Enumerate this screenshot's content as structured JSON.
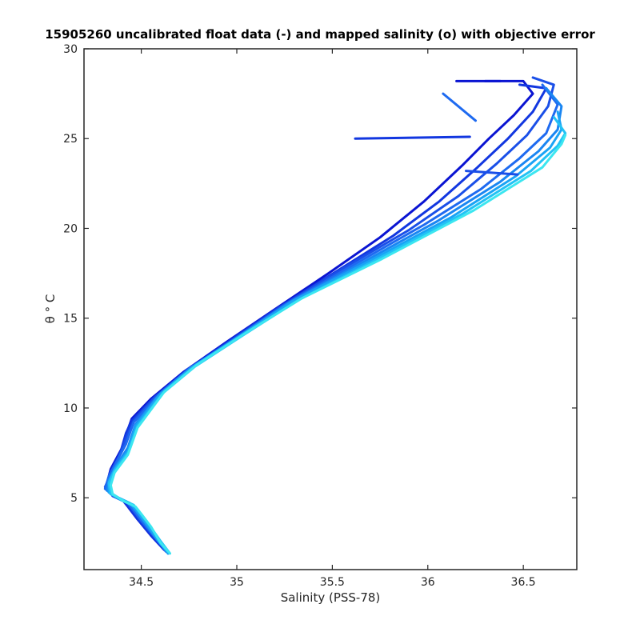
{
  "chart_data": {
    "type": "line",
    "title": "15905260 uncalibrated float data (-) and mapped salinity (o) with objective error",
    "xlabel": "Salinity (PSS-78)",
    "ylabel": "θ ° C",
    "xlim": [
      34.2,
      36.78
    ],
    "ylim": [
      1.0,
      30.0
    ],
    "xticks": [
      34.5,
      35,
      35.5,
      36,
      36.5
    ],
    "yticks": [
      5,
      10,
      15,
      20,
      25,
      30
    ],
    "xtick_labels": [
      "34.5",
      "35",
      "35.5",
      "36",
      "36.5"
    ],
    "ytick_labels": [
      "5",
      "10",
      "15",
      "20",
      "25",
      "30"
    ],
    "grid": false,
    "legend": "none",
    "color_gradient": [
      "#0a14d2",
      "#1f5ff0",
      "#1aa3f5",
      "#3ce6f0"
    ],
    "series": [
      {
        "color": "#0a14d2",
        "values": [
          [
            34.62,
            2.1
          ],
          [
            34.55,
            2.9
          ],
          [
            34.48,
            3.8
          ],
          [
            34.43,
            4.5
          ],
          [
            34.4,
            4.9
          ],
          [
            34.34,
            5.2
          ],
          [
            34.32,
            5.8
          ],
          [
            34.34,
            6.6
          ],
          [
            34.4,
            7.8
          ],
          [
            34.43,
            8.8
          ],
          [
            34.45,
            9.4
          ],
          [
            34.55,
            10.5
          ],
          [
            34.72,
            12.0
          ],
          [
            34.95,
            13.7
          ],
          [
            35.2,
            15.5
          ],
          [
            35.48,
            17.5
          ],
          [
            35.75,
            19.5
          ],
          [
            35.98,
            21.5
          ],
          [
            36.18,
            23.5
          ],
          [
            36.32,
            25.0
          ],
          [
            36.45,
            26.3
          ],
          [
            36.55,
            27.5
          ],
          [
            36.5,
            28.2
          ],
          [
            36.3,
            28.2
          ]
        ]
      },
      {
        "color": "#1237e0",
        "values": [
          [
            34.63,
            2.0
          ],
          [
            34.56,
            2.8
          ],
          [
            34.49,
            3.7
          ],
          [
            34.44,
            4.4
          ],
          [
            34.41,
            4.8
          ],
          [
            34.35,
            5.1
          ],
          [
            34.32,
            5.7
          ],
          [
            34.34,
            6.5
          ],
          [
            34.39,
            7.5
          ],
          [
            34.42,
            8.6
          ],
          [
            34.45,
            9.3
          ],
          [
            34.56,
            10.5
          ],
          [
            34.73,
            12.0
          ],
          [
            34.97,
            13.8
          ],
          [
            35.22,
            15.6
          ],
          [
            35.52,
            17.6
          ],
          [
            35.82,
            19.6
          ],
          [
            36.06,
            21.5
          ],
          [
            36.26,
            23.4
          ],
          [
            36.42,
            25.0
          ],
          [
            36.55,
            26.5
          ],
          [
            36.62,
            27.8
          ],
          [
            36.48,
            28.0
          ]
        ]
      },
      {
        "color": "#1a4fe8",
        "values": [
          [
            34.64,
            2.0
          ],
          [
            34.57,
            2.8
          ],
          [
            34.5,
            3.7
          ],
          [
            34.45,
            4.4
          ],
          [
            34.42,
            4.8
          ],
          [
            34.36,
            5.1
          ],
          [
            34.31,
            5.6
          ],
          [
            34.34,
            6.3
          ],
          [
            34.38,
            7.2
          ],
          [
            34.42,
            8.3
          ],
          [
            34.46,
            9.3
          ],
          [
            34.57,
            10.6
          ],
          [
            34.74,
            12.1
          ],
          [
            34.98,
            13.8
          ],
          [
            35.24,
            15.7
          ],
          [
            35.56,
            17.8
          ],
          [
            35.9,
            19.9
          ],
          [
            36.16,
            21.8
          ],
          [
            36.36,
            23.6
          ],
          [
            36.52,
            25.2
          ],
          [
            36.63,
            26.8
          ],
          [
            36.66,
            28.0
          ],
          [
            36.55,
            28.4
          ]
        ]
      },
      {
        "color": "#1e6af0",
        "values": [
          [
            34.64,
            1.9
          ],
          [
            34.58,
            2.7
          ],
          [
            34.51,
            3.6
          ],
          [
            34.46,
            4.3
          ],
          [
            34.43,
            4.7
          ],
          [
            34.37,
            5.0
          ],
          [
            34.31,
            5.5
          ],
          [
            34.33,
            6.2
          ],
          [
            34.37,
            7.0
          ],
          [
            34.42,
            8.0
          ],
          [
            34.46,
            9.2
          ],
          [
            34.58,
            10.6
          ],
          [
            34.75,
            12.2
          ],
          [
            35.0,
            13.9
          ],
          [
            35.26,
            15.8
          ],
          [
            35.6,
            17.9
          ],
          [
            35.98,
            20.2
          ],
          [
            36.28,
            22.2
          ],
          [
            36.48,
            23.9
          ],
          [
            36.62,
            25.3
          ],
          [
            36.68,
            26.9
          ],
          [
            36.6,
            28.0
          ]
        ]
      },
      {
        "color": "#1a86f2",
        "values": [
          [
            34.64,
            1.9
          ],
          [
            34.58,
            2.7
          ],
          [
            34.52,
            3.6
          ],
          [
            34.47,
            4.3
          ],
          [
            34.44,
            4.7
          ],
          [
            34.38,
            5.0
          ],
          [
            34.32,
            5.4
          ],
          [
            34.33,
            6.0
          ],
          [
            34.37,
            6.8
          ],
          [
            34.43,
            7.8
          ],
          [
            34.47,
            9.1
          ],
          [
            34.59,
            10.7
          ],
          [
            34.76,
            12.2
          ],
          [
            35.01,
            14.0
          ],
          [
            35.28,
            15.9
          ],
          [
            35.64,
            18.0
          ],
          [
            36.05,
            20.4
          ],
          [
            36.38,
            22.6
          ],
          [
            36.58,
            24.3
          ],
          [
            36.68,
            25.5
          ],
          [
            36.7,
            26.8
          ],
          [
            36.62,
            27.8
          ]
        ]
      },
      {
        "color": "#1aa3f5",
        "values": [
          [
            34.64,
            1.9
          ],
          [
            34.59,
            2.6
          ],
          [
            34.53,
            3.5
          ],
          [
            34.48,
            4.2
          ],
          [
            34.45,
            4.6
          ],
          [
            34.39,
            4.9
          ],
          [
            34.33,
            5.3
          ],
          [
            34.33,
            5.9
          ],
          [
            34.36,
            6.6
          ],
          [
            34.43,
            7.6
          ],
          [
            34.47,
            9.0
          ],
          [
            34.6,
            10.8
          ],
          [
            34.77,
            12.3
          ],
          [
            35.03,
            14.1
          ],
          [
            35.3,
            16.0
          ],
          [
            35.68,
            18.1
          ],
          [
            36.12,
            20.6
          ],
          [
            36.46,
            22.9
          ],
          [
            36.64,
            24.5
          ],
          [
            36.7,
            25.5
          ],
          [
            36.68,
            26.5
          ]
        ]
      },
      {
        "color": "#22c2f5",
        "values": [
          [
            34.65,
            1.9
          ],
          [
            34.6,
            2.6
          ],
          [
            34.54,
            3.5
          ],
          [
            34.49,
            4.2
          ],
          [
            34.46,
            4.6
          ],
          [
            34.4,
            4.9
          ],
          [
            34.34,
            5.2
          ],
          [
            34.33,
            5.8
          ],
          [
            34.36,
            6.5
          ],
          [
            34.43,
            7.5
          ],
          [
            34.48,
            9.0
          ],
          [
            34.61,
            10.8
          ],
          [
            34.78,
            12.3
          ],
          [
            35.04,
            14.1
          ],
          [
            35.32,
            16.0
          ],
          [
            35.72,
            18.2
          ],
          [
            36.18,
            20.8
          ],
          [
            36.54,
            23.2
          ],
          [
            36.68,
            24.6
          ],
          [
            36.72,
            25.3
          ],
          [
            36.66,
            26.2
          ]
        ]
      },
      {
        "color": "#3ce6f0",
        "values": [
          [
            34.65,
            1.9
          ],
          [
            34.6,
            2.5
          ],
          [
            34.55,
            3.4
          ],
          [
            34.5,
            4.1
          ],
          [
            34.47,
            4.5
          ],
          [
            34.41,
            4.8
          ],
          [
            34.35,
            5.2
          ],
          [
            34.34,
            5.7
          ],
          [
            34.36,
            6.4
          ],
          [
            34.43,
            7.4
          ],
          [
            34.48,
            8.9
          ],
          [
            34.62,
            10.9
          ],
          [
            34.79,
            12.4
          ],
          [
            35.05,
            14.2
          ],
          [
            35.34,
            16.1
          ],
          [
            35.76,
            18.3
          ],
          [
            36.24,
            21.0
          ],
          [
            36.6,
            23.4
          ],
          [
            36.7,
            24.7
          ],
          [
            36.72,
            25.2
          ]
        ]
      },
      {
        "color": "#1237e0",
        "values": [
          [
            36.22,
            25.1
          ],
          [
            35.62,
            25.0
          ]
        ]
      },
      {
        "color": "#1e6af0",
        "values": [
          [
            36.25,
            26.0
          ],
          [
            36.08,
            27.5
          ]
        ]
      },
      {
        "color": "#0a14d2",
        "values": [
          [
            36.38,
            28.2
          ],
          [
            36.15,
            28.2
          ]
        ]
      },
      {
        "color": "#1a4fe8",
        "values": [
          [
            36.2,
            23.2
          ],
          [
            36.47,
            23.0
          ]
        ]
      }
    ]
  }
}
